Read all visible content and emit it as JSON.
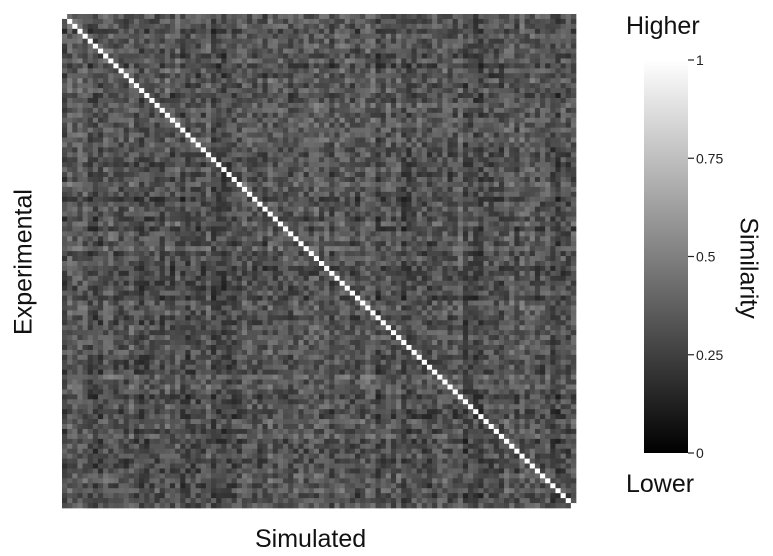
{
  "chart_data": {
    "type": "heatmap",
    "title": "",
    "xlabel": "Simulated",
    "ylabel": "Experimental",
    "grid": false,
    "matrix_size": 100,
    "diagonal_value": 1.0,
    "off_diagonal_range": [
      0.1,
      0.55
    ],
    "colormap": "grayscale",
    "colorbar": {
      "label": "Similarity",
      "top_label": "Higher",
      "bottom_label": "Lower",
      "range": [
        0,
        1
      ],
      "ticks": [
        {
          "value": 1,
          "label": "1"
        },
        {
          "value": 0.75,
          "label": "0.75"
        },
        {
          "value": 0.5,
          "label": "0.5"
        },
        {
          "value": 0.25,
          "label": "0.25"
        },
        {
          "value": 0,
          "label": "0"
        }
      ]
    }
  },
  "colors": {
    "low": "#000000",
    "high": "#ffffff"
  }
}
